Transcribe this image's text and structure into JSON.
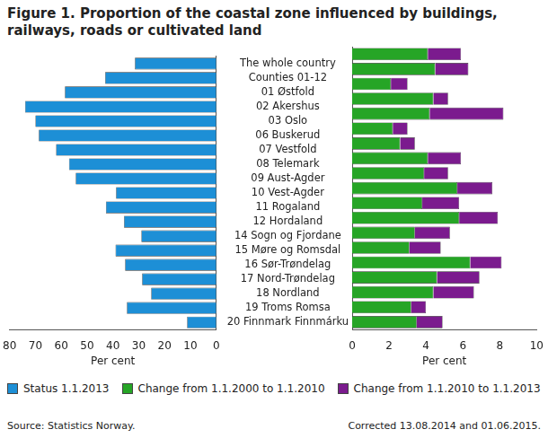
{
  "title": "Figure 1. Proportion of the coastal zone influenced by buildings, railways, roads or cultivated land",
  "source": "Source: Statistics Norway.",
  "note": "Corrected 13.08.2014 and 01.06.2015.",
  "chart_data": [
    {
      "type": "bar",
      "orientation": "horizontal",
      "legend": "bottom",
      "grid": false,
      "categories": [
        "The whole country",
        "Counties 01-12",
        "01 Østfold",
        "02 Akershus",
        "03 Oslo",
        "06 Buskerud",
        "07 Vestfold",
        "08 Telemark",
        "09 Aust-Agder",
        "10 Vest-Agder",
        "11 Rogaland",
        "12 Hordaland",
        "14 Sogn og Fjordane",
        "15 Møre og Romsdal",
        "16 Sør-Trøndelag",
        "17 Nord-Trøndelag",
        "18 Nordland",
        "19 Troms Romsa",
        "20 Finnmark Finnmárku"
      ],
      "series": [
        {
          "name": "Status 1.1.2013",
          "color": "#1d8fd6",
          "values": [
            31.5,
            43,
            58.6,
            74,
            70,
            68.7,
            62,
            57,
            54.4,
            38.8,
            42.7,
            35.7,
            29,
            39,
            35.3,
            28.7,
            25.2,
            34.6,
            11.3
          ]
        }
      ],
      "xlabel": "Per cent",
      "xlim": [
        80,
        0
      ],
      "xticks": [
        80,
        70,
        60,
        50,
        40,
        30,
        20,
        10,
        0
      ]
    },
    {
      "type": "bar",
      "orientation": "horizontal",
      "stacked": true,
      "legend": "bottom",
      "grid": false,
      "tick_labels": "x",
      "categories": [
        "The whole country",
        "Counties 01-12",
        "01 Østfold",
        "02 Akershus",
        "03 Oslo",
        "06 Buskerud",
        "07 Vestfold",
        "08 Telemark",
        "09 Aust-Agder",
        "10 Vest-Agder",
        "11 Rogaland",
        "12 Hordaland",
        "14 Sogn og Fjordane",
        "15 Møre og Romsdal",
        "16 Sør-Trøndelag",
        "17 Nord-Trøndelag",
        "18 Nordland",
        "19 Troms Romsa",
        "20 Finnmark Finnmárku"
      ],
      "series": [
        {
          "name": "Change from 1.1.2000 to 1.1.2010",
          "color": "#26a526",
          "values": [
            4.1,
            4.5,
            2.1,
            4.4,
            4.2,
            2.2,
            2.6,
            4.1,
            3.9,
            5.7,
            3.8,
            5.8,
            3.4,
            3.1,
            6.4,
            4.6,
            4.4,
            3.2,
            3.5
          ]
        },
        {
          "name": "Change from 1.1.2010 to 1.1.2013",
          "color": "#7b1b8e",
          "values": [
            1.8,
            1.8,
            0.9,
            0.8,
            4.0,
            0.8,
            0.8,
            1.8,
            1.3,
            1.9,
            2.0,
            2.1,
            1.9,
            1.7,
            1.7,
            2.3,
            2.2,
            0.8,
            1.4
          ]
        }
      ],
      "xlabel": "Per cent",
      "xlim": [
        0,
        10
      ],
      "xticks": [
        0,
        2,
        4,
        6,
        8,
        10
      ]
    }
  ]
}
